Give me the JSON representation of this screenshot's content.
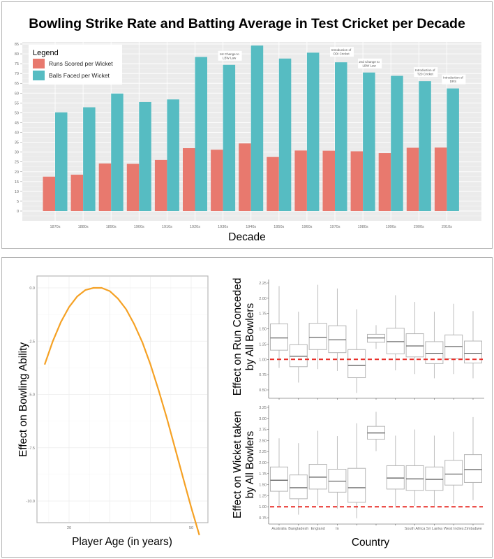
{
  "chart_data": [
    {
      "type": "bar",
      "title": "Bowling Strike Rate and Batting Average in Test Cricket per Decade",
      "xlabel": "Decade",
      "ylabel": "",
      "ylim": [
        0,
        85
      ],
      "yticks": [
        0,
        5,
        10,
        15,
        20,
        25,
        30,
        35,
        40,
        45,
        50,
        55,
        60,
        65,
        70,
        75,
        80,
        85
      ],
      "grid": true,
      "legend": {
        "title": "Legend",
        "placement": "top-left"
      },
      "categories": [
        "1870s",
        "1880s",
        "1890s",
        "1900s",
        "1910s",
        "1920s",
        "1930s",
        "1940s",
        "1950s",
        "1960s",
        "1970s",
        "1980s",
        "1990s",
        "2000s",
        "2010s"
      ],
      "series": [
        {
          "name": "Runs Scored per Wicket",
          "color": "#e8796e",
          "values": [
            17.5,
            18.5,
            24.2,
            24.0,
            26.0,
            32.0,
            31.2,
            34.4,
            27.5,
            30.8,
            30.7,
            30.4,
            29.5,
            32.2,
            32.3
          ]
        },
        {
          "name": "Balls Faced per Wicket",
          "color": "#56bcc2",
          "values": [
            50.2,
            52.8,
            59.8,
            55.5,
            56.8,
            78.4,
            74.4,
            84.2,
            77.6,
            80.6,
            75.7,
            70.5,
            68.8,
            66.1,
            62.4
          ]
        }
      ],
      "annotations": [
        {
          "category": "1930s",
          "lines": [
            "1st Change to",
            "LBW Law"
          ]
        },
        {
          "category": "1970s",
          "lines": [
            "Introduction of",
            "ODI Cricket"
          ]
        },
        {
          "category": "1980s",
          "lines": [
            "2nd Change to",
            "LBW Law"
          ]
        },
        {
          "category": "2000s",
          "lines": [
            "Introduction of",
            "T20 Cricket"
          ]
        },
        {
          "category": "2010s",
          "lines": [
            "Introduction of",
            "DRS"
          ]
        }
      ]
    },
    {
      "type": "line",
      "title": "",
      "xlabel": "Player Age (in years)",
      "ylabel": "Effect on Bowling Ability",
      "xlim": [
        12,
        54
      ],
      "ylim": [
        -11.2,
        0.6
      ],
      "xticks": [
        "20",
        "",
        "",
        "50"
      ],
      "xtick_values": [
        20,
        30,
        40,
        50
      ],
      "yticks": [
        "0.0",
        "-2.5",
        "-5.0",
        "-7.5",
        "-10.0"
      ],
      "ytick_values": [
        0,
        -2.5,
        -5.0,
        -7.5,
        -10.0
      ],
      "grid": true,
      "color": "#f5a124",
      "series": [
        {
          "name": "effect",
          "x": [
            14,
            16,
            18,
            20,
            22,
            24,
            26,
            28,
            30,
            32,
            34,
            36,
            38,
            40,
            42,
            44,
            46,
            48,
            50,
            52
          ],
          "y": [
            -3.6,
            -2.5,
            -1.6,
            -0.9,
            -0.4,
            -0.1,
            0.0,
            0.0,
            -0.15,
            -0.5,
            -1.0,
            -1.7,
            -2.55,
            -3.6,
            -4.8,
            -6.1,
            -7.5,
            -8.9,
            -10.3,
            -11.6
          ]
        }
      ]
    },
    {
      "type": "boxplot",
      "title": "",
      "xlabel": "",
      "ylabel": "Effect on Run Conceded by All Bowlers",
      "ylim": [
        0.4,
        2.3
      ],
      "yticks": [
        "0.50",
        "0.75",
        "1.00",
        "1.25",
        "1.50",
        "1.75",
        "2.00",
        "2.25"
      ],
      "ytick_values": [
        0.5,
        0.75,
        1.0,
        1.25,
        1.5,
        1.75,
        2.0,
        2.25
      ],
      "reference_line": {
        "y": 1.0,
        "color": "#e8302a",
        "style": "dashed"
      },
      "boxes": [
        {
          "min": 0.86,
          "q1": 1.15,
          "median": 1.35,
          "q3": 1.58,
          "max": 2.2
        },
        {
          "min": 0.62,
          "q1": 0.88,
          "median": 1.05,
          "q3": 1.24,
          "max": 1.78
        },
        {
          "min": 0.84,
          "q1": 1.16,
          "median": 1.36,
          "q3": 1.59,
          "max": 2.22
        },
        {
          "min": 0.81,
          "q1": 1.11,
          "median": 1.32,
          "q3": 1.55,
          "max": 2.16
        },
        {
          "min": 0.45,
          "q1": 0.7,
          "median": 0.9,
          "q3": 1.16,
          "max": 1.82
        },
        {
          "min": 1.17,
          "q1": 1.28,
          "median": 1.35,
          "q3": 1.41,
          "max": 1.56
        },
        {
          "min": 0.82,
          "q1": 1.09,
          "median": 1.29,
          "q3": 1.51,
          "max": 2.05
        },
        {
          "min": 0.76,
          "q1": 1.04,
          "median": 1.22,
          "q3": 1.42,
          "max": 1.94
        },
        {
          "min": 0.69,
          "q1": 0.93,
          "median": 1.1,
          "q3": 1.29,
          "max": 1.78
        },
        {
          "min": 0.76,
          "q1": 1.01,
          "median": 1.21,
          "q3": 1.4,
          "max": 1.91
        },
        {
          "min": 0.69,
          "q1": 0.94,
          "median": 1.1,
          "q3": 1.3,
          "max": 1.79
        }
      ]
    },
    {
      "type": "boxplot",
      "title": "",
      "xlabel": "Country",
      "ylabel": "Effect on Wicket taken by All Bowlers",
      "ylim": [
        0.65,
        3.3
      ],
      "yticks": [
        "0.75",
        "1.00",
        "1.25",
        "1.50",
        "1.75",
        "2.00",
        "2.25",
        "2.50",
        "2.75",
        "3.00",
        "3.25"
      ],
      "ytick_values": [
        0.75,
        1.0,
        1.25,
        1.5,
        1.75,
        2.0,
        2.25,
        2.5,
        2.75,
        3.0,
        3.25
      ],
      "categories": [
        "Australia",
        "Bangladesh",
        "England",
        "In",
        "",
        "",
        "",
        "South Africa",
        "Sri Lanka",
        "West Indies",
        "Zimbabwe"
      ],
      "reference_line": {
        "y": 1.0,
        "color": "#e8302a",
        "style": "dashed"
      },
      "boxes": [
        {
          "min": 1.02,
          "q1": 1.35,
          "median": 1.6,
          "q3": 1.9,
          "max": 2.55
        },
        {
          "min": 0.82,
          "q1": 1.18,
          "median": 1.43,
          "q3": 1.72,
          "max": 2.44
        },
        {
          "min": 1.03,
          "q1": 1.4,
          "median": 1.67,
          "q3": 1.96,
          "max": 2.72
        },
        {
          "min": 0.96,
          "q1": 1.33,
          "median": 1.58,
          "q3": 1.85,
          "max": 2.6
        },
        {
          "min": 0.74,
          "q1": 1.1,
          "median": 1.43,
          "q3": 1.87,
          "max": 2.89
        },
        {
          "min": 2.26,
          "q1": 2.53,
          "median": 2.67,
          "q3": 2.82,
          "max": 3.15
        },
        {
          "min": 1.02,
          "q1": 1.4,
          "median": 1.65,
          "q3": 1.93,
          "max": 2.61
        },
        {
          "min": 1.02,
          "q1": 1.37,
          "median": 1.63,
          "q3": 1.93,
          "max": 2.75
        },
        {
          "min": 1.02,
          "q1": 1.37,
          "median": 1.62,
          "q3": 1.9,
          "max": 2.61
        },
        {
          "min": 1.07,
          "q1": 1.49,
          "median": 1.74,
          "q3": 2.05,
          "max": 2.7
        },
        {
          "min": 1.15,
          "q1": 1.55,
          "median": 1.84,
          "q3": 2.18,
          "max": 3.03
        }
      ]
    }
  ],
  "colors": {
    "panel_background": "#ebebeb",
    "grid": "#ffffff",
    "box_stroke": "#b5b5b5",
    "median": "#555555"
  }
}
